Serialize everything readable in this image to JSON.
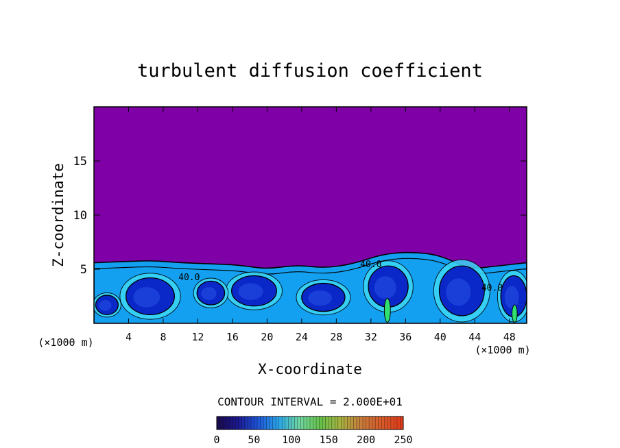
{
  "chart_data": {
    "type": "heatmap",
    "title": "turbulent diffusion coefficient",
    "xlabel": "X-coordinate",
    "ylabel": "Z-coordinate",
    "x_unit": "(×1000 m)",
    "x_unit_right": "(×1000 m)",
    "xlim": [
      0,
      50
    ],
    "ylim": [
      0,
      20
    ],
    "x_ticks": [
      "4",
      "8",
      "12",
      "16",
      "20",
      "24",
      "28",
      "32",
      "36",
      "40",
      "44",
      "48"
    ],
    "y_ticks": [
      "5",
      "10",
      "15"
    ],
    "grid": false,
    "contour_interval_text": "CONTOUR INTERVAL = 2.000E+01",
    "contour_labels": [
      {
        "text": "40.0",
        "x": 11,
        "z": 4.0
      },
      {
        "text": "40.0",
        "x": 32,
        "z": 5.2
      },
      {
        "text": "40.0",
        "x": 46,
        "z": 3.0
      }
    ],
    "colorbar": {
      "min": 0,
      "max": 250,
      "ticks": [
        "0",
        "50",
        "100",
        "150",
        "200",
        "250"
      ],
      "colors": [
        "#1a0a4a",
        "#1b1890",
        "#1e55d8",
        "#2aa6e8",
        "#6fd6a0",
        "#66c24a",
        "#a8b040",
        "#c87a3a",
        "#d85a2a",
        "#e03a1a"
      ]
    },
    "field_colors": {
      "background": "#7f00a6",
      "low": "#0a28c8",
      "mid": "#14a0f0",
      "high": "#3cd8f8",
      "peak": "#30e070"
    },
    "boundary_layer_top_z": [
      5.6,
      5.7,
      5.8,
      5.6,
      5.5,
      5.4,
      5.0,
      5.4,
      5.1,
      5.5,
      6.4,
      6.6,
      6.3,
      5.0,
      5.3,
      5.6
    ],
    "eddies": [
      {
        "x": 6.5,
        "z": 2.5,
        "rx": 2.8,
        "rz": 1.7
      },
      {
        "x": 42.5,
        "z": 3.0,
        "rx": 2.6,
        "rz": 2.3
      },
      {
        "x": 34.0,
        "z": 3.4,
        "rx": 2.3,
        "rz": 1.9
      },
      {
        "x": 26.5,
        "z": 2.4,
        "rx": 2.5,
        "rz": 1.3
      },
      {
        "x": 18.5,
        "z": 3.0,
        "rx": 2.6,
        "rz": 1.4
      },
      {
        "x": 13.5,
        "z": 2.8,
        "rx": 1.6,
        "rz": 1.1
      },
      {
        "x": 48.5,
        "z": 2.5,
        "rx": 1.5,
        "rz": 1.9
      },
      {
        "x": 1.5,
        "z": 1.7,
        "rx": 1.3,
        "rz": 0.9
      }
    ],
    "hot_spots": [
      {
        "x": 33.9,
        "z": 1.2,
        "rx": 0.35,
        "rz": 1.1
      },
      {
        "x": 48.6,
        "z": 0.9,
        "rx": 0.3,
        "rz": 0.8
      }
    ]
  }
}
